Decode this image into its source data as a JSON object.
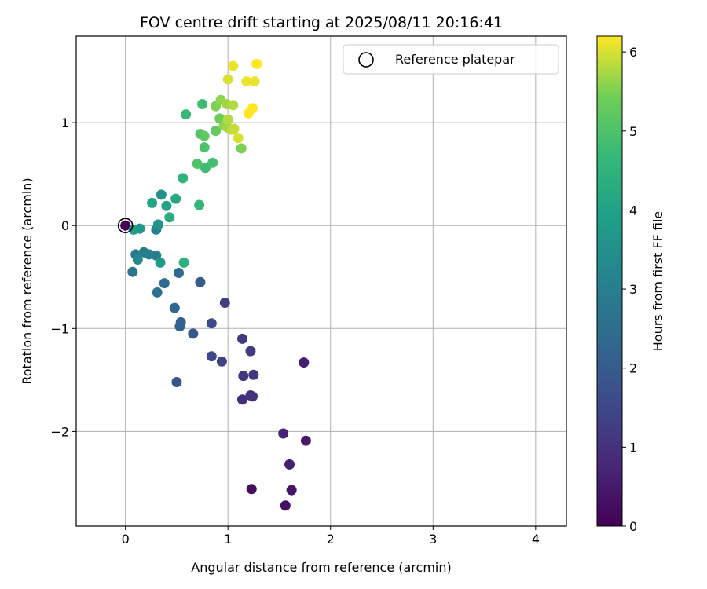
{
  "chart_data": {
    "type": "scatter",
    "title": "FOV centre drift starting at 2025/08/11 20:16:41",
    "xlabel": "Angular distance from reference (arcmin)",
    "ylabel": "Rotation from reference (arcmin)",
    "xlim": [
      -0.48,
      4.3
    ],
    "ylim": [
      -2.92,
      1.84
    ],
    "xticks": [
      0,
      1,
      2,
      3,
      4
    ],
    "xtick_labels": [
      "0",
      "1",
      "2",
      "3",
      "4"
    ],
    "yticks": [
      -2,
      -1,
      0,
      1
    ],
    "ytick_labels": [
      "−2",
      "−1",
      "0",
      "1"
    ],
    "grid": true,
    "legend": {
      "placement": "top-right",
      "entries": [
        "Reference platepar"
      ]
    },
    "reference_point": {
      "x": 0,
      "y": 0,
      "marker": "open-circle"
    },
    "colormap": "viridis",
    "colorbar": {
      "label": "Hours from first FF file",
      "range": [
        0,
        6.2
      ],
      "ticks": [
        0,
        1,
        2,
        3,
        4,
        5,
        6
      ],
      "tick_labels": [
        "0",
        "1",
        "2",
        "3",
        "4",
        "5",
        "6"
      ]
    },
    "points": [
      {
        "x": 0.0,
        "y": 0.0,
        "hours": 0.0
      },
      {
        "x": 1.23,
        "y": -2.56,
        "hours": 0.2
      },
      {
        "x": 1.56,
        "y": -2.72,
        "hours": 0.3
      },
      {
        "x": 1.62,
        "y": -2.57,
        "hours": 0.4
      },
      {
        "x": 1.76,
        "y": -2.09,
        "hours": 0.5
      },
      {
        "x": 1.74,
        "y": -1.33,
        "hours": 0.55
      },
      {
        "x": 1.6,
        "y": -2.32,
        "hours": 0.6
      },
      {
        "x": 1.54,
        "y": -2.02,
        "hours": 0.7
      },
      {
        "x": 1.14,
        "y": -1.69,
        "hours": 0.9
      },
      {
        "x": 1.24,
        "y": -1.66,
        "hours": 1.0
      },
      {
        "x": 1.22,
        "y": -1.65,
        "hours": 1.0
      },
      {
        "x": 1.25,
        "y": -1.45,
        "hours": 1.1
      },
      {
        "x": 1.15,
        "y": -1.46,
        "hours": 1.1
      },
      {
        "x": 1.22,
        "y": -1.22,
        "hours": 1.2
      },
      {
        "x": 1.14,
        "y": -1.1,
        "hours": 1.2
      },
      {
        "x": 0.97,
        "y": -0.75,
        "hours": 1.3
      },
      {
        "x": 0.94,
        "y": -1.32,
        "hours": 1.4
      },
      {
        "x": 0.84,
        "y": -1.27,
        "hours": 1.5
      },
      {
        "x": 0.84,
        "y": -0.95,
        "hours": 1.6
      },
      {
        "x": 0.5,
        "y": -1.52,
        "hours": 1.8
      },
      {
        "x": 0.66,
        "y": -1.05,
        "hours": 1.9
      },
      {
        "x": 0.73,
        "y": -0.55,
        "hours": 2.0
      },
      {
        "x": 0.54,
        "y": -0.94,
        "hours": 2.1
      },
      {
        "x": 0.53,
        "y": -0.98,
        "hours": 2.2
      },
      {
        "x": 0.48,
        "y": -0.8,
        "hours": 2.3
      },
      {
        "x": 0.52,
        "y": -0.46,
        "hours": 2.4
      },
      {
        "x": 0.38,
        "y": -0.56,
        "hours": 2.5
      },
      {
        "x": 0.31,
        "y": -0.65,
        "hours": 2.6
      },
      {
        "x": 0.07,
        "y": -0.45,
        "hours": 2.7
      },
      {
        "x": 0.1,
        "y": -0.28,
        "hours": 2.8
      },
      {
        "x": 0.18,
        "y": -0.26,
        "hours": 2.9
      },
      {
        "x": 0.23,
        "y": -0.28,
        "hours": 3.0
      },
      {
        "x": 0.3,
        "y": -0.29,
        "hours": 3.0
      },
      {
        "x": 0.3,
        "y": -0.04,
        "hours": 3.1
      },
      {
        "x": 0.12,
        "y": -0.33,
        "hours": 3.3
      },
      {
        "x": 0.35,
        "y": 0.3,
        "hours": 3.5
      },
      {
        "x": 0.32,
        "y": 0.01,
        "hours": 3.6
      },
      {
        "x": 0.14,
        "y": -0.03,
        "hours": 3.7
      },
      {
        "x": 0.08,
        "y": -0.04,
        "hours": 3.8
      },
      {
        "x": 0.34,
        "y": -0.36,
        "hours": 3.8
      },
      {
        "x": 0.4,
        "y": 0.19,
        "hours": 4.0
      },
      {
        "x": 0.26,
        "y": 0.22,
        "hours": 4.1
      },
      {
        "x": 0.49,
        "y": 0.26,
        "hours": 4.2
      },
      {
        "x": 0.43,
        "y": 0.08,
        "hours": 4.3
      },
      {
        "x": 0.57,
        "y": -0.36,
        "hours": 4.4
      },
      {
        "x": 0.56,
        "y": 0.46,
        "hours": 4.5
      },
      {
        "x": 0.72,
        "y": 0.2,
        "hours": 4.6
      },
      {
        "x": 0.59,
        "y": 1.08,
        "hours": 4.7
      },
      {
        "x": 0.75,
        "y": 1.18,
        "hours": 4.8
      },
      {
        "x": 0.78,
        "y": 0.56,
        "hours": 4.8
      },
      {
        "x": 0.85,
        "y": 0.61,
        "hours": 4.9
      },
      {
        "x": 0.7,
        "y": 0.6,
        "hours": 5.0
      },
      {
        "x": 0.77,
        "y": 0.76,
        "hours": 5.0
      },
      {
        "x": 0.73,
        "y": 0.89,
        "hours": 5.1
      },
      {
        "x": 0.77,
        "y": 0.87,
        "hours": 5.2
      },
      {
        "x": 0.88,
        "y": 0.92,
        "hours": 5.3
      },
      {
        "x": 0.92,
        "y": 1.04,
        "hours": 5.4
      },
      {
        "x": 1.13,
        "y": 0.75,
        "hours": 5.5
      },
      {
        "x": 0.88,
        "y": 1.16,
        "hours": 5.5
      },
      {
        "x": 0.93,
        "y": 1.22,
        "hours": 5.6
      },
      {
        "x": 0.96,
        "y": 0.97,
        "hours": 5.6
      },
      {
        "x": 0.99,
        "y": 1.18,
        "hours": 5.7
      },
      {
        "x": 1.0,
        "y": 0.95,
        "hours": 5.7
      },
      {
        "x": 1.05,
        "y": 1.17,
        "hours": 5.8
      },
      {
        "x": 1.0,
        "y": 1.03,
        "hours": 5.8
      },
      {
        "x": 1.04,
        "y": 0.93,
        "hours": 5.9
      },
      {
        "x": 1.06,
        "y": 0.94,
        "hours": 5.9
      },
      {
        "x": 1.1,
        "y": 0.85,
        "hours": 6.0
      },
      {
        "x": 1.0,
        "y": 1.42,
        "hours": 6.0
      },
      {
        "x": 1.05,
        "y": 1.55,
        "hours": 6.1
      },
      {
        "x": 1.18,
        "y": 1.4,
        "hours": 6.1
      },
      {
        "x": 1.26,
        "y": 1.4,
        "hours": 6.1
      },
      {
        "x": 1.24,
        "y": 1.14,
        "hours": 6.2
      },
      {
        "x": 1.2,
        "y": 1.09,
        "hours": 6.2
      },
      {
        "x": 1.28,
        "y": 1.57,
        "hours": 6.2
      }
    ]
  }
}
